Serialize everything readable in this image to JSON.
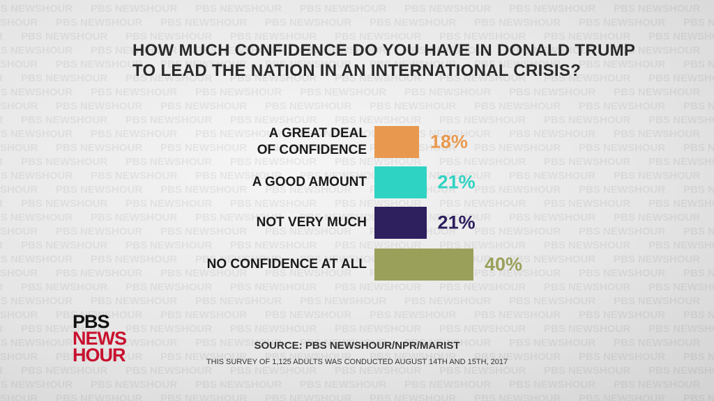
{
  "watermark": "PBS NEWSHOUR",
  "chart_data": {
    "type": "bar",
    "orientation": "horizontal",
    "title": "HOW MUCH CONFIDENCE DO YOU HAVE IN DONALD TRUMP\nTO LEAD THE NATION IN AN INTERNATIONAL CRISIS?",
    "categories": [
      "A GREAT DEAL\nOF CONFIDENCE",
      "A GOOD AMOUNT",
      "NOT VERY MUCH",
      "NO CONFIDENCE AT ALL"
    ],
    "values": [
      18,
      21,
      21,
      40
    ],
    "value_labels": [
      "18%",
      "21%",
      "21%",
      "40%"
    ],
    "colors": [
      "#e8994f",
      "#2fd3c3",
      "#2e1f5e",
      "#9aa05a"
    ],
    "source": "SOURCE: PBS NEWSHOUR/NPR/MARIST",
    "note": "THIS SURVEY OF 1,125 ADULTS WAS CONDUCTED AUGUST 14TH AND 15TH, 2017"
  },
  "logo": {
    "line1": "PBS",
    "line2": "NEWS",
    "line3": "HOUR"
  }
}
